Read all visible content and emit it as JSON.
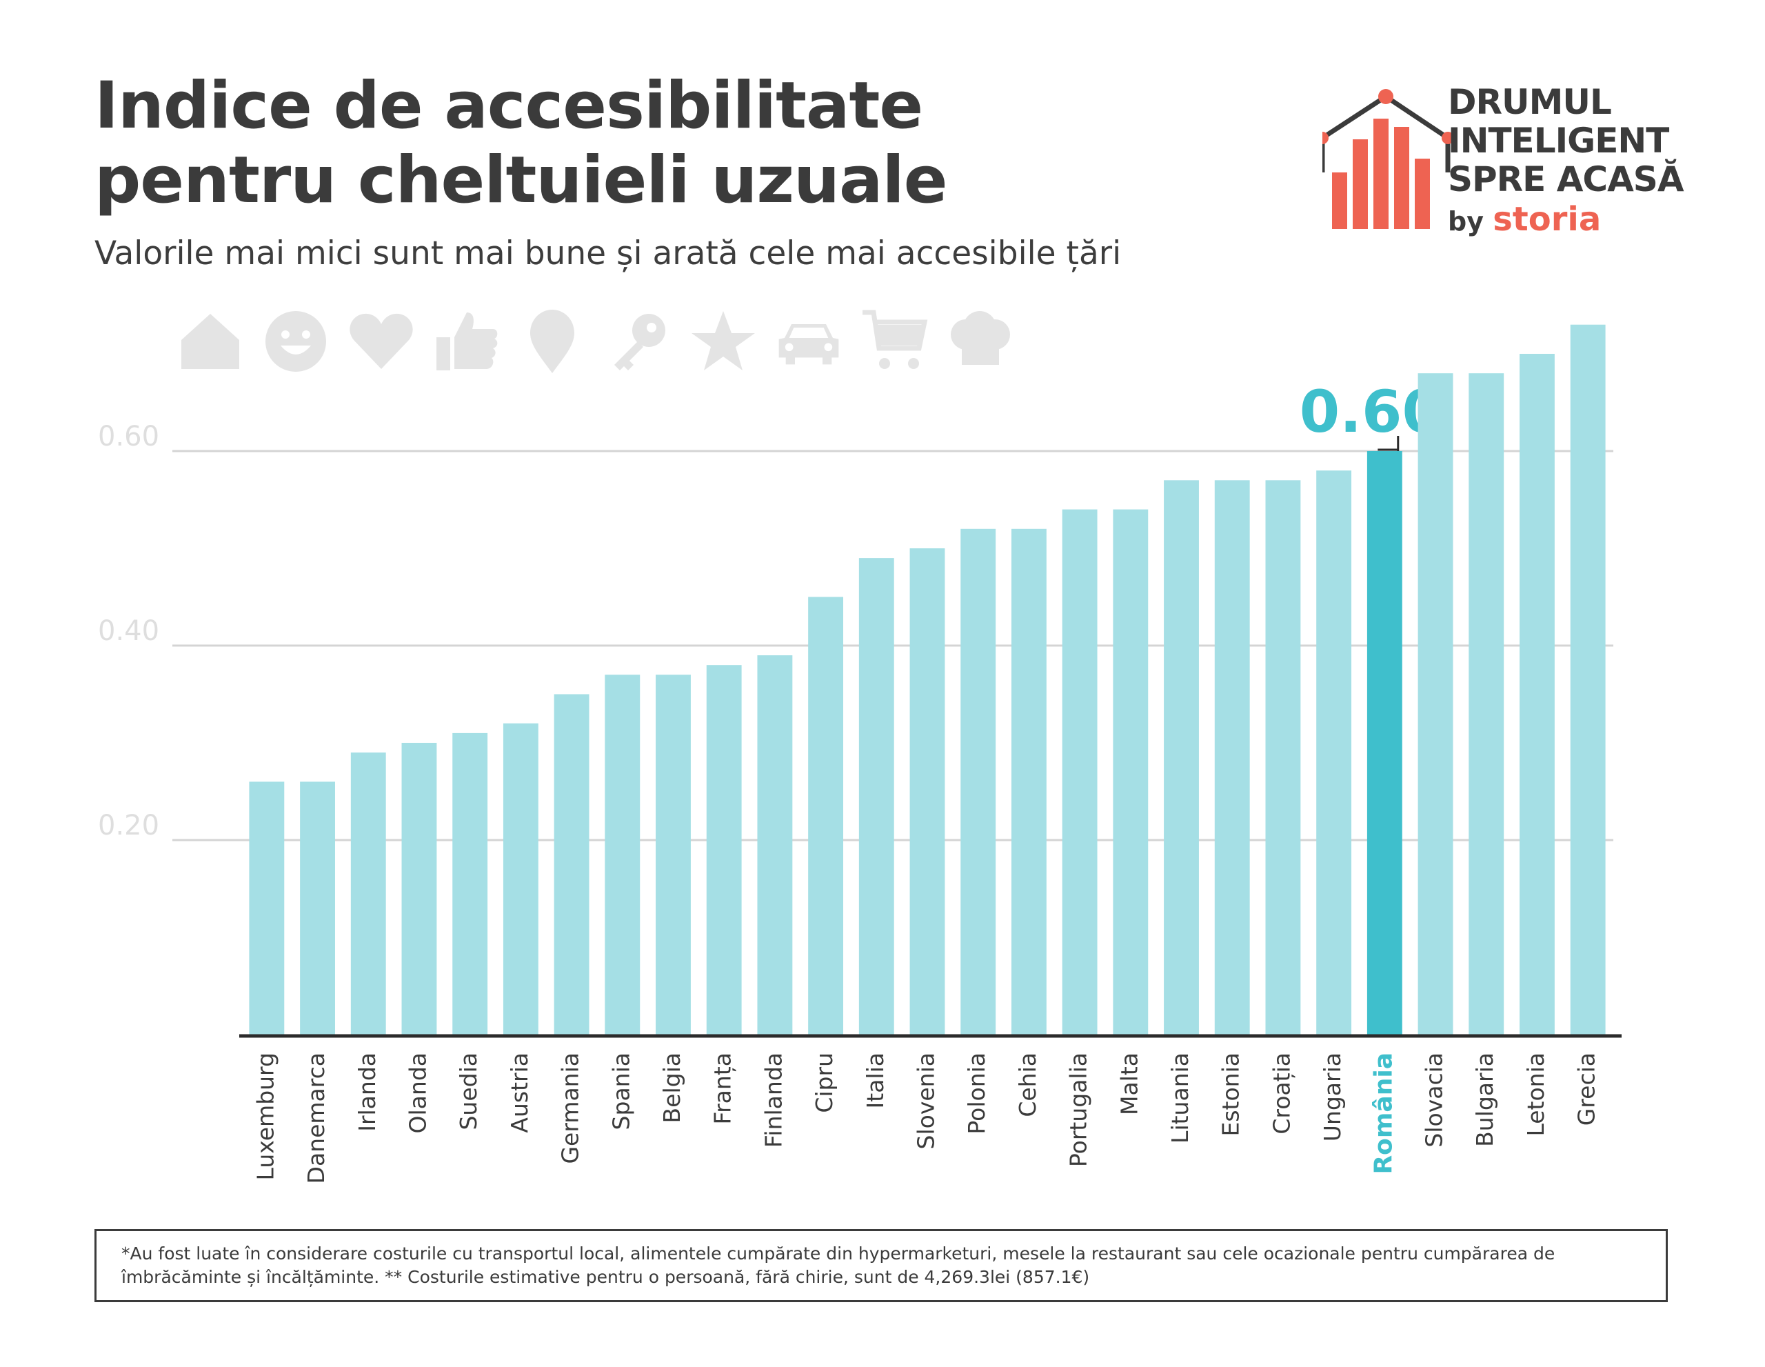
{
  "title": "Indice de accesibilitate pentru cheltuieli uzuale",
  "subtitle": "Valorile mai mici sunt mai bune și arată cele mai accesibile țări",
  "logo": {
    "line1": "DRUMUL",
    "line2": "INTELIGENT",
    "line3": "SPRE ACASĂ",
    "by": "by",
    "brand": "storia"
  },
  "icons": [
    "house-icon",
    "smiley-icon",
    "heart-icon",
    "thumbs-up-icon",
    "map-pin-icon",
    "key-icon",
    "star-icon",
    "car-icon",
    "cart-icon",
    "chef-hat-icon"
  ],
  "colors": {
    "bar": "#a5dfe5",
    "highlight": "#3fbfcc",
    "grid": "#d4d4d4",
    "axis": "#2b2b2b",
    "tick_label": "#dedede",
    "text": "#3b3b3b",
    "logo_red": "#ee6352"
  },
  "chart_data": {
    "type": "bar",
    "title": "Indice de accesibilitate pentru cheltuieli uzuale",
    "categories": [
      "Luxemburg",
      "Danemarca",
      "Irlanda",
      "Olanda",
      "Suedia",
      "Austria",
      "Germania",
      "Spania",
      "Belgia",
      "Franța",
      "Finlanda",
      "Cipru",
      "Italia",
      "Slovenia",
      "Polonia",
      "Cehia",
      "Portugalia",
      "Malta",
      "Lituania",
      "Estonia",
      "Croația",
      "Ungaria",
      "România",
      "Slovacia",
      "Bulgaria",
      "Letonia",
      "Grecia"
    ],
    "values": [
      0.26,
      0.26,
      0.29,
      0.3,
      0.31,
      0.32,
      0.35,
      0.37,
      0.37,
      0.38,
      0.39,
      0.45,
      0.49,
      0.5,
      0.52,
      0.52,
      0.54,
      0.54,
      0.57,
      0.57,
      0.57,
      0.58,
      0.6,
      0.68,
      0.68,
      0.7,
      0.73
    ],
    "highlight": "România",
    "highlight_label": "0.60",
    "yticks": [
      "0.20",
      "0.40",
      "0.60"
    ],
    "ylim": [
      0,
      0.75
    ],
    "grid": true
  },
  "footnote": "*Au fost luate în considerare costurile cu transportul local, alimentele cumpărate din hypermarketuri, mesele la restaurant sau cele ocazionale pentru cumpărarea de îmbrăcăminte și încălțăminte. ** Costurile estimative pentru o persoană, fără chirie, sunt de 4,269.3lei (857.1€)"
}
